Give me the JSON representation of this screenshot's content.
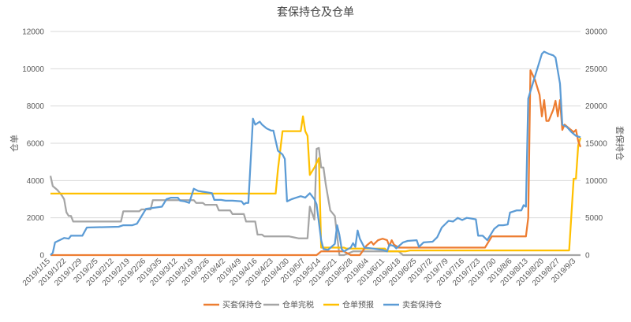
{
  "chart_data": {
    "type": "line",
    "title": "套保持仓及仓单",
    "ylabel_left": "仓单",
    "ylabel_right": "套保持仓",
    "ylim_left": [
      0,
      12000
    ],
    "ylim_right": [
      0,
      30000
    ],
    "yticks_left": [
      0,
      2000,
      4000,
      6000,
      8000,
      10000,
      12000
    ],
    "yticks_right": [
      0,
      5000,
      10000,
      15000,
      20000,
      25000,
      30000
    ],
    "x_range": [
      "2019/1/15",
      "2019/9/5"
    ],
    "x_ticks": [
      "2019/1/15",
      "2019/1/22",
      "2019/1/29",
      "2019/2/5",
      "2019/2/12",
      "2019/2/19",
      "2019/2/26",
      "2019/3/5",
      "2019/3/12",
      "2019/3/19",
      "2019/3/26",
      "2019/4/2",
      "2019/4/9",
      "2019/4/16",
      "2019/4/23",
      "2019/4/30",
      "2019/5/7",
      "2019/5/14",
      "2019/5/21",
      "2019/5/28",
      "2019/6/4",
      "2019/6/11",
      "2019/6/18",
      "2019/6/25",
      "2019/7/2",
      "2019/7/9",
      "2019/7/16",
      "2019/7/23",
      "2019/7/30",
      "2019/8/6",
      "2019/8/13",
      "2019/8/20",
      "2019/8/27",
      "2019/9/3"
    ],
    "legend_position": "bottom",
    "grid": true,
    "series": [
      {
        "name": "买套保持仓",
        "axis": "right",
        "color": "#ed7d31",
        "points": [
          [
            "2019/1/15",
            0
          ],
          [
            "2019/5/12",
            0
          ],
          [
            "2019/5/14",
            500
          ],
          [
            "2019/5/24",
            500
          ],
          [
            "2019/5/27",
            0
          ],
          [
            "2019/5/31",
            0
          ],
          [
            "2019/6/3",
            1300
          ],
          [
            "2019/6/5",
            1800
          ],
          [
            "2019/6/6",
            1400
          ],
          [
            "2019/6/8",
            2000
          ],
          [
            "2019/6/10",
            2200
          ],
          [
            "2019/6/12",
            2000
          ],
          [
            "2019/6/13",
            1200
          ],
          [
            "2019/6/14",
            2000
          ],
          [
            "2019/6/15",
            1400
          ],
          [
            "2019/6/17",
            1000
          ],
          [
            "2019/7/25",
            1000
          ],
          [
            "2019/7/28",
            2500
          ],
          [
            "2019/8/12",
            2500
          ],
          [
            "2019/8/13",
            5000
          ],
          [
            "2019/8/14",
            24800
          ],
          [
            "2019/8/16",
            23500
          ],
          [
            "2019/8/18",
            21500
          ],
          [
            "2019/8/19",
            18600
          ],
          [
            "2019/8/20",
            20800
          ],
          [
            "2019/8/21",
            18000
          ],
          [
            "2019/8/22",
            18000
          ],
          [
            "2019/8/24",
            19500
          ],
          [
            "2019/8/25",
            20700
          ],
          [
            "2019/8/26",
            18600
          ],
          [
            "2019/8/27",
            20800
          ],
          [
            "2019/8/28",
            16800
          ],
          [
            "2019/8/29",
            17500
          ],
          [
            "2019/8/31",
            17000
          ],
          [
            "2019/9/2",
            16500
          ],
          [
            "2019/9/3",
            16800
          ],
          [
            "2019/9/4",
            15300
          ],
          [
            "2019/9/5",
            14500
          ]
        ]
      },
      {
        "name": "仓单完税",
        "axis": "left",
        "color": "#a5a5a5",
        "points": [
          [
            "2019/1/15",
            4250
          ],
          [
            "2019/1/16",
            3700
          ],
          [
            "2019/1/18",
            3500
          ],
          [
            "2019/1/20",
            3200
          ],
          [
            "2019/1/21",
            3000
          ],
          [
            "2019/1/22",
            2300
          ],
          [
            "2019/1/23",
            2100
          ],
          [
            "2019/1/24",
            2100
          ],
          [
            "2019/1/25",
            1800
          ],
          [
            "2019/2/15",
            1800
          ],
          [
            "2019/2/16",
            2350
          ],
          [
            "2019/2/23",
            2350
          ],
          [
            "2019/2/24",
            2450
          ],
          [
            "2019/2/28",
            2450
          ],
          [
            "2019/3/1",
            2950
          ],
          [
            "2019/3/19",
            2950
          ],
          [
            "2019/3/20",
            2800
          ],
          [
            "2019/3/23",
            2800
          ],
          [
            "2019/3/24",
            2700
          ],
          [
            "2019/3/29",
            2700
          ],
          [
            "2019/3/30",
            2400
          ],
          [
            "2019/4/4",
            2400
          ],
          [
            "2019/4/5",
            2200
          ],
          [
            "2019/4/10",
            2200
          ],
          [
            "2019/4/11",
            1800
          ],
          [
            "2019/4/15",
            1800
          ],
          [
            "2019/4/16",
            1100
          ],
          [
            "2019/4/18",
            1100
          ],
          [
            "2019/4/19",
            1000
          ],
          [
            "2019/4/30",
            1000
          ],
          [
            "2019/5/2",
            950
          ],
          [
            "2019/5/4",
            900
          ],
          [
            "2019/5/8",
            900
          ],
          [
            "2019/5/9",
            2600
          ],
          [
            "2019/5/11",
            1900
          ],
          [
            "2019/5/12",
            5700
          ],
          [
            "2019/5/13",
            5750
          ],
          [
            "2019/5/14",
            4700
          ],
          [
            "2019/5/15",
            4700
          ],
          [
            "2019/5/16",
            3800
          ],
          [
            "2019/5/18",
            2400
          ],
          [
            "2019/5/20",
            2100
          ],
          [
            "2019/5/22",
            0
          ],
          [
            "2019/5/24",
            0
          ],
          [
            "2019/5/28",
            200
          ],
          [
            "2019/6/17",
            200
          ],
          [
            "2019/6/19",
            0
          ],
          [
            "2019/9/5",
            0
          ]
        ]
      },
      {
        "name": "仓单预报",
        "axis": "left",
        "color": "#ffc000",
        "points": [
          [
            "2019/1/15",
            3300
          ],
          [
            "2019/4/24",
            3300
          ],
          [
            "2019/4/25",
            4600
          ],
          [
            "2019/4/27",
            6650
          ],
          [
            "2019/5/4",
            6650
          ],
          [
            "2019/5/5",
            6650
          ],
          [
            "2019/5/6",
            7450
          ],
          [
            "2019/5/7",
            6650
          ],
          [
            "2019/5/8",
            6400
          ],
          [
            "2019/5/9",
            4300
          ],
          [
            "2019/5/11",
            4700
          ],
          [
            "2019/5/13",
            5200
          ],
          [
            "2019/5/14",
            400
          ],
          [
            "2019/5/24",
            400
          ],
          [
            "2019/5/25",
            350
          ],
          [
            "2019/6/11",
            350
          ],
          [
            "2019/6/12",
            200
          ],
          [
            "2019/6/20",
            200
          ],
          [
            "2019/6/22",
            250
          ],
          [
            "2019/8/30",
            250
          ],
          [
            "2019/8/31",
            250
          ],
          [
            "2019/9/2",
            4100
          ],
          [
            "2019/9/3",
            4100
          ],
          [
            "2019/9/4",
            5900
          ],
          [
            "2019/9/5",
            6300
          ]
        ]
      },
      {
        "name": "卖套保持仓",
        "axis": "right",
        "color": "#5b9bd5",
        "points": [
          [
            "2019/1/15",
            0
          ],
          [
            "2019/1/16",
            300
          ],
          [
            "2019/1/17",
            1700
          ],
          [
            "2019/1/19",
            2000
          ],
          [
            "2019/1/21",
            2300
          ],
          [
            "2019/1/23",
            2200
          ],
          [
            "2019/1/24",
            2600
          ],
          [
            "2019/1/29",
            2600
          ],
          [
            "2019/1/31",
            3700
          ],
          [
            "2019/2/14",
            3800
          ],
          [
            "2019/2/16",
            4000
          ],
          [
            "2019/2/20",
            4000
          ],
          [
            "2019/2/22",
            4200
          ],
          [
            "2019/2/26",
            6200
          ],
          [
            "2019/3/5",
            6500
          ],
          [
            "2019/3/7",
            7500
          ],
          [
            "2019/3/9",
            7700
          ],
          [
            "2019/3/12",
            7700
          ],
          [
            "2019/3/13",
            7300
          ],
          [
            "2019/3/15",
            7200
          ],
          [
            "2019/3/17",
            7000
          ],
          [
            "2019/3/19",
            8900
          ],
          [
            "2019/3/21",
            8600
          ],
          [
            "2019/3/23",
            8500
          ],
          [
            "2019/3/27",
            8300
          ],
          [
            "2019/3/28",
            7400
          ],
          [
            "2019/3/31",
            7400
          ],
          [
            "2019/4/2",
            7300
          ],
          [
            "2019/4/5",
            7300
          ],
          [
            "2019/4/9",
            7200
          ],
          [
            "2019/4/10",
            6800
          ],
          [
            "2019/4/11",
            7000
          ],
          [
            "2019/4/12",
            7000
          ],
          [
            "2019/4/14",
            18300
          ],
          [
            "2019/4/15",
            17500
          ],
          [
            "2019/4/16",
            17700
          ],
          [
            "2019/4/17",
            17900
          ],
          [
            "2019/4/18",
            17500
          ],
          [
            "2019/4/20",
            17000
          ],
          [
            "2019/4/22",
            16700
          ],
          [
            "2019/4/23",
            16700
          ],
          [
            "2019/4/25",
            14000
          ],
          [
            "2019/4/27",
            13500
          ],
          [
            "2019/4/28",
            12900
          ],
          [
            "2019/4/29",
            7200
          ],
          [
            "2019/5/1",
            7500
          ],
          [
            "2019/5/3",
            7700
          ],
          [
            "2019/5/5",
            7900
          ],
          [
            "2019/5/7",
            7700
          ],
          [
            "2019/5/9",
            8300
          ],
          [
            "2019/5/11",
            7500
          ],
          [
            "2019/5/12",
            6800
          ],
          [
            "2019/5/14",
            2000
          ],
          [
            "2019/5/15",
            800
          ],
          [
            "2019/5/17",
            700
          ],
          [
            "2019/5/20",
            1500
          ],
          [
            "2019/5/21",
            4000
          ],
          [
            "2019/5/22",
            2700
          ],
          [
            "2019/5/23",
            800
          ],
          [
            "2019/5/24",
            500
          ],
          [
            "2019/5/27",
            1000
          ],
          [
            "2019/5/28",
            1600
          ],
          [
            "2019/5/29",
            1100
          ],
          [
            "2019/5/30",
            3300
          ],
          [
            "2019/5/31",
            2200
          ],
          [
            "2019/6/2",
            1000
          ],
          [
            "2019/6/5",
            900
          ],
          [
            "2019/6/10",
            700
          ],
          [
            "2019/6/12",
            500
          ],
          [
            "2019/6/13",
            1400
          ],
          [
            "2019/6/15",
            1200
          ],
          [
            "2019/6/16",
            900
          ],
          [
            "2019/6/19",
            1700
          ],
          [
            "2019/6/21",
            1900
          ],
          [
            "2019/6/25",
            2000
          ],
          [
            "2019/6/26",
            1100
          ],
          [
            "2019/6/28",
            1700
          ],
          [
            "2019/7/2",
            1800
          ],
          [
            "2019/7/4",
            2400
          ],
          [
            "2019/7/6",
            3700
          ],
          [
            "2019/7/9",
            4600
          ],
          [
            "2019/7/11",
            4500
          ],
          [
            "2019/7/13",
            5000
          ],
          [
            "2019/7/15",
            4700
          ],
          [
            "2019/7/17",
            5000
          ],
          [
            "2019/7/19",
            4900
          ],
          [
            "2019/7/21",
            4800
          ],
          [
            "2019/7/22",
            2600
          ],
          [
            "2019/7/24",
            2600
          ],
          [
            "2019/7/26",
            2000
          ],
          [
            "2019/7/29",
            3500
          ],
          [
            "2019/7/31",
            4000
          ],
          [
            "2019/8/2",
            4000
          ],
          [
            "2019/8/4",
            4100
          ],
          [
            "2019/8/5",
            5700
          ],
          [
            "2019/8/8",
            6000
          ],
          [
            "2019/8/10",
            6000
          ],
          [
            "2019/8/11",
            6700
          ],
          [
            "2019/8/12",
            6500
          ],
          [
            "2019/8/13",
            21000
          ],
          [
            "2019/8/15",
            23000
          ],
          [
            "2019/8/17",
            25000
          ],
          [
            "2019/8/19",
            27000
          ],
          [
            "2019/8/20",
            27300
          ],
          [
            "2019/8/22",
            27000
          ],
          [
            "2019/8/24",
            26800
          ],
          [
            "2019/8/25",
            26500
          ],
          [
            "2019/8/27",
            23000
          ],
          [
            "2019/8/28",
            17500
          ],
          [
            "2019/8/30",
            17200
          ],
          [
            "2019/9/1",
            16500
          ],
          [
            "2019/9/3",
            16000
          ],
          [
            "2019/9/5",
            15800
          ]
        ]
      }
    ]
  }
}
